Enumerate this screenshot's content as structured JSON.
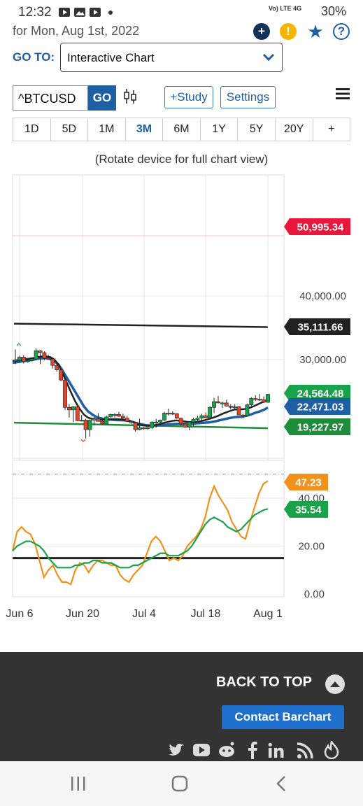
{
  "status_bar": {
    "time": "12:32",
    "network": "Vo) LTE 4G",
    "battery": "30%"
  },
  "header": {
    "date_label": "for Mon, Aug 1st, 2022"
  },
  "goto": {
    "label": "GO TO:",
    "value": "Interactive Chart"
  },
  "toolbar": {
    "symbol": "^BTCUSD",
    "go_label": "GO",
    "study_label": "+Study",
    "settings_label": "Settings"
  },
  "ranges": [
    "1D",
    "5D",
    "1M",
    "3M",
    "6M",
    "1Y",
    "5Y",
    "20Y",
    "+"
  ],
  "active_range": "3M",
  "rotate_note": "(Rotate device for full chart view)",
  "chart_data": [
    {
      "type": "candlestick",
      "title": "",
      "price_axis_ticks": [
        "40,000.00",
        "30,000.00"
      ],
      "x_tick_labels": [
        "Jun 6",
        "Jun 20",
        "Jul 4",
        "Jul 18",
        "Aug 1"
      ],
      "price_labels": [
        {
          "value": "50,995.34",
          "color": "#e8173b"
        },
        {
          "value": "35,111.66",
          "color": "#222222"
        },
        {
          "value": "24,564.48",
          "color": "#18a24a"
        },
        {
          "value": "22,471.03",
          "color": "#1f5fa3"
        },
        {
          "value": "19,227.97",
          "color": "#1f8c3c"
        }
      ],
      "candles": [
        {
          "date": "Jun 1",
          "o": 29800,
          "h": 31600,
          "l": 29300,
          "c": 29900
        },
        {
          "date": "Jun 2",
          "o": 29900,
          "h": 30600,
          "l": 29500,
          "c": 30400
        },
        {
          "date": "Jun 3",
          "o": 30400,
          "h": 30700,
          "l": 29400,
          "c": 29700
        },
        {
          "date": "Jun 4",
          "o": 29700,
          "h": 30000,
          "l": 29500,
          "c": 29850
        },
        {
          "date": "Jun 5",
          "o": 29850,
          "h": 30300,
          "l": 29700,
          "c": 30100
        },
        {
          "date": "Jun 6",
          "o": 30100,
          "h": 31800,
          "l": 29900,
          "c": 31400
        },
        {
          "date": "Jun 7",
          "o": 31400,
          "h": 31500,
          "l": 29300,
          "c": 31100
        },
        {
          "date": "Jun 8",
          "o": 31100,
          "h": 31300,
          "l": 29900,
          "c": 30200
        },
        {
          "date": "Jun 9",
          "o": 30200,
          "h": 30700,
          "l": 30000,
          "c": 30100
        },
        {
          "date": "Jun 10",
          "o": 30100,
          "h": 30300,
          "l": 28600,
          "c": 29100
        },
        {
          "date": "Jun 11",
          "o": 29100,
          "h": 29400,
          "l": 28100,
          "c": 28400
        },
        {
          "date": "Jun 12",
          "o": 28400,
          "h": 28600,
          "l": 26600,
          "c": 26800
        },
        {
          "date": "Jun 13",
          "o": 26800,
          "h": 26900,
          "l": 22100,
          "c": 22500
        },
        {
          "date": "Jun 14",
          "o": 22500,
          "h": 23000,
          "l": 20900,
          "c": 22100
        },
        {
          "date": "Jun 15",
          "o": 22100,
          "h": 22700,
          "l": 20200,
          "c": 22600
        },
        {
          "date": "Jun 16",
          "o": 22600,
          "h": 22900,
          "l": 20300,
          "c": 20400
        },
        {
          "date": "Jun 17",
          "o": 20400,
          "h": 21300,
          "l": 20300,
          "c": 20500
        },
        {
          "date": "Jun 18",
          "o": 20500,
          "h": 20700,
          "l": 17600,
          "c": 19000
        },
        {
          "date": "Jun 19",
          "o": 19000,
          "h": 20600,
          "l": 17900,
          "c": 20500
        },
        {
          "date": "Jun 20",
          "o": 20500,
          "h": 21000,
          "l": 19700,
          "c": 20700
        },
        {
          "date": "Jun 21",
          "o": 20700,
          "h": 21600,
          "l": 20400,
          "c": 20300
        },
        {
          "date": "Jun 22",
          "o": 20300,
          "h": 20800,
          "l": 19800,
          "c": 19900
        },
        {
          "date": "Jun 23",
          "o": 19900,
          "h": 21200,
          "l": 19900,
          "c": 21000
        },
        {
          "date": "Jun 24",
          "o": 21000,
          "h": 21500,
          "l": 20900,
          "c": 21400
        },
        {
          "date": "Jun 25",
          "o": 21400,
          "h": 21600,
          "l": 20900,
          "c": 21400
        },
        {
          "date": "Jun 26",
          "o": 21400,
          "h": 21800,
          "l": 21000,
          "c": 21100
        },
        {
          "date": "Jun 27",
          "o": 21100,
          "h": 21500,
          "l": 20600,
          "c": 20800
        },
        {
          "date": "Jun 28",
          "o": 20800,
          "h": 21100,
          "l": 20200,
          "c": 20300
        },
        {
          "date": "Jun 29",
          "o": 20300,
          "h": 20400,
          "l": 19900,
          "c": 20100
        },
        {
          "date": "Jun 30",
          "o": 20100,
          "h": 20200,
          "l": 18700,
          "c": 19000
        },
        {
          "date": "Jul 1",
          "o": 19000,
          "h": 20700,
          "l": 18900,
          "c": 19300
        },
        {
          "date": "Jul 2",
          "o": 19300,
          "h": 19400,
          "l": 19000,
          "c": 19200
        },
        {
          "date": "Jul 3",
          "o": 19200,
          "h": 19700,
          "l": 19000,
          "c": 19300
        },
        {
          "date": "Jul 4",
          "o": 19300,
          "h": 20300,
          "l": 19100,
          "c": 20200
        },
        {
          "date": "Jul 5",
          "o": 20200,
          "h": 20700,
          "l": 19300,
          "c": 20200
        },
        {
          "date": "Jul 6",
          "o": 20200,
          "h": 20600,
          "l": 19800,
          "c": 20500
        },
        {
          "date": "Jul 7",
          "o": 20500,
          "h": 21800,
          "l": 20300,
          "c": 21600
        },
        {
          "date": "Jul 8",
          "o": 21600,
          "h": 22300,
          "l": 21200,
          "c": 21600
        },
        {
          "date": "Jul 9",
          "o": 21600,
          "h": 21900,
          "l": 21300,
          "c": 21500
        },
        {
          "date": "Jul 10",
          "o": 21500,
          "h": 21600,
          "l": 20700,
          "c": 20800
        },
        {
          "date": "Jul 11",
          "o": 20800,
          "h": 20900,
          "l": 19600,
          "c": 19900
        },
        {
          "date": "Jul 12",
          "o": 19900,
          "h": 20000,
          "l": 19300,
          "c": 19400
        },
        {
          "date": "Jul 13",
          "o": 19400,
          "h": 20200,
          "l": 18900,
          "c": 20200
        },
        {
          "date": "Jul 14",
          "o": 20200,
          "h": 20900,
          "l": 19600,
          "c": 20600
        },
        {
          "date": "Jul 15",
          "o": 20600,
          "h": 21200,
          "l": 20400,
          "c": 20800
        },
        {
          "date": "Jul 16",
          "o": 20800,
          "h": 21500,
          "l": 20500,
          "c": 21200
        },
        {
          "date": "Jul 17",
          "o": 21200,
          "h": 21700,
          "l": 20800,
          "c": 20900
        },
        {
          "date": "Jul 18",
          "o": 20900,
          "h": 22700,
          "l": 20800,
          "c": 22500
        },
        {
          "date": "Jul 19",
          "o": 22500,
          "h": 24000,
          "l": 21600,
          "c": 23400
        },
        {
          "date": "Jul 20",
          "o": 23400,
          "h": 24300,
          "l": 23100,
          "c": 23200
        },
        {
          "date": "Jul 21",
          "o": 23200,
          "h": 23400,
          "l": 22400,
          "c": 23200
        },
        {
          "date": "Jul 22",
          "o": 23200,
          "h": 23700,
          "l": 22600,
          "c": 22700
        },
        {
          "date": "Jul 23",
          "o": 22700,
          "h": 23000,
          "l": 22200,
          "c": 22500
        },
        {
          "date": "Jul 24",
          "o": 22500,
          "h": 23000,
          "l": 22300,
          "c": 22600
        },
        {
          "date": "Jul 25",
          "o": 22600,
          "h": 22700,
          "l": 21400,
          "c": 21300
        },
        {
          "date": "Jul 26",
          "o": 21300,
          "h": 21500,
          "l": 20800,
          "c": 21200
        },
        {
          "date": "Jul 27",
          "o": 21200,
          "h": 23100,
          "l": 21100,
          "c": 22900
        },
        {
          "date": "Jul 28",
          "o": 22900,
          "h": 24100,
          "l": 22700,
          "c": 23900
        },
        {
          "date": "Jul 29",
          "o": 23900,
          "h": 24400,
          "l": 23500,
          "c": 23800
        },
        {
          "date": "Jul 30",
          "o": 23800,
          "h": 24600,
          "l": 23500,
          "c": 23700
        },
        {
          "date": "Jul 31",
          "o": 23700,
          "h": 24200,
          "l": 23200,
          "c": 23300
        },
        {
          "date": "Aug 1",
          "o": 23300,
          "h": 24600,
          "l": 23200,
          "c": 24560
        }
      ],
      "lines": [
        {
          "color": "#222222",
          "points": [
            [
              "Jun 1",
              35650
            ],
            [
              "Aug 1",
              35111.66
            ]
          ]
        },
        {
          "color": "#1f8c3c",
          "points": [
            [
              "Jun 1",
              20100
            ],
            [
              "Aug 1",
              19227.97
            ]
          ]
        }
      ],
      "moving_averages": [
        {
          "color": "#1f5fa3",
          "values": [
            29500,
            29600,
            29700,
            29800,
            29900,
            30000,
            30150,
            30200,
            30250,
            30100,
            29800,
            29200,
            28200,
            27100,
            26000,
            24900,
            23800,
            22700,
            21900,
            21400,
            21000,
            20800,
            20650,
            20600,
            20550,
            20500,
            20500,
            20450,
            20350,
            20150,
            19950,
            19800,
            19700,
            19650,
            19650,
            19700,
            19750,
            19800,
            19850,
            19900,
            19900,
            19900,
            19900,
            19950,
            20000,
            20050,
            20100,
            20150,
            20250,
            20400,
            20550,
            20700,
            20850,
            20950,
            21000,
            21050,
            21200,
            21400,
            21650,
            21850,
            22100,
            22471.03
          ]
        },
        {
          "color": "#222222",
          "values": [
            29800,
            29900,
            30000,
            30100,
            30150,
            30250,
            30400,
            30500,
            30500,
            30400,
            30000,
            29200,
            27800,
            26300,
            24800,
            23400,
            22300,
            21400,
            20900,
            20700,
            20600,
            20550,
            20550,
            20600,
            20650,
            20650,
            20600,
            20500,
            20350,
            20100,
            19900,
            19700,
            19600,
            19600,
            19700,
            19850,
            20050,
            20200,
            20350,
            20450,
            20400,
            20300,
            20200,
            20200,
            20250,
            20350,
            20500,
            20700,
            20900,
            21150,
            21450,
            21700,
            21950,
            22150,
            22200,
            22200,
            22300,
            22500,
            22800,
            23100,
            23400,
            23700
          ]
        }
      ]
    },
    {
      "type": "line",
      "title": "",
      "y_axis_ticks": [
        "40.00",
        "20.00",
        "0.00"
      ],
      "ylim": [
        0,
        52
      ],
      "reference_line": 50,
      "horizontal_line": {
        "value": 15,
        "color": "#222222"
      },
      "value_labels": [
        {
          "value": "47.23",
          "color": "#f0921c"
        },
        {
          "value": "35.54",
          "color": "#18a24a"
        }
      ],
      "series": [
        {
          "color": "#f0921c",
          "values": [
            18,
            26,
            28,
            26,
            25,
            21,
            14,
            7,
            10,
            12,
            8,
            5,
            5,
            4,
            10,
            13,
            12,
            9,
            12,
            14,
            14,
            13,
            12,
            12,
            8,
            6,
            5,
            8,
            10,
            12,
            17,
            22,
            24,
            22,
            18,
            14,
            15,
            14,
            16,
            20,
            22,
            24,
            27,
            32,
            40,
            45,
            41,
            38,
            35,
            30,
            27,
            24,
            23,
            30,
            36,
            42,
            46,
            47.23
          ]
        },
        {
          "color": "#18a24a",
          "values": [
            18,
            20,
            21,
            22,
            22,
            21,
            20,
            18,
            15,
            13,
            11,
            11,
            11,
            11,
            12,
            12,
            13,
            13,
            14,
            14,
            13,
            13,
            13,
            12,
            11,
            11,
            11,
            12,
            12,
            13,
            14,
            15,
            16,
            17,
            17,
            16,
            16,
            16,
            17,
            18,
            20,
            23,
            26,
            29,
            31,
            32,
            31,
            30,
            28,
            27,
            26,
            27,
            29,
            31,
            33,
            34,
            35,
            35.54
          ]
        }
      ]
    }
  ],
  "footer": {
    "back_to_top": "BACK TO TOP",
    "contact_label": "Contact Barchart",
    "social_icons": [
      "twitter-icon",
      "youtube-icon",
      "reddit-icon",
      "facebook-icon",
      "linkedin-icon",
      "rss-icon",
      "barchart-icon"
    ]
  },
  "colors": {
    "brand_blue": "#1f5fa3",
    "footer_bg": "#333333",
    "contact_bg": "#1f6fcc",
    "up_candle": "#18a24a",
    "down_candle": "#e0452c"
  }
}
